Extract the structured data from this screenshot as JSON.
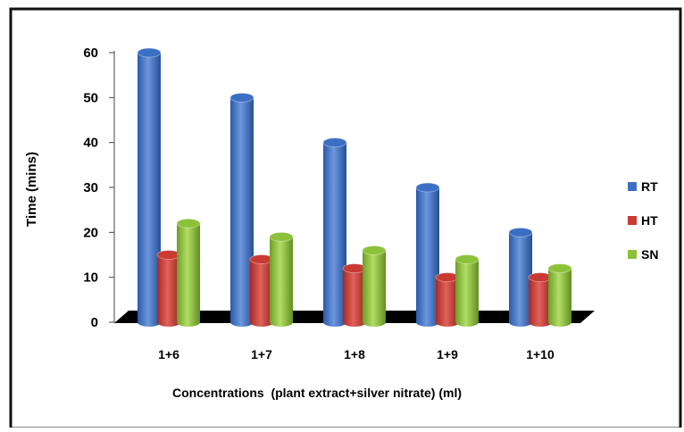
{
  "chart_data": {
    "type": "bar",
    "categories": [
      "1+6",
      "1+7",
      "1+8",
      "1+9",
      "1+10"
    ],
    "series": [
      {
        "name": "RT",
        "values": [
          60,
          50,
          40,
          30,
          20
        ],
        "color": "#3b6fc4"
      },
      {
        "name": "HT",
        "values": [
          15,
          14,
          12,
          10,
          10
        ],
        "color": "#c93a33"
      },
      {
        "name": "SN",
        "values": [
          22,
          19,
          16,
          14,
          12
        ],
        "color": "#8cc23a"
      }
    ],
    "title": "",
    "xlabel": "Concentrations  (plant extract+silver nitrate) (ml)",
    "ylabel": "Time (mins)",
    "ylim": [
      0,
      60
    ],
    "yticks": [
      0,
      10,
      20,
      30,
      40,
      50,
      60
    ],
    "grid": false,
    "legend_position": "right",
    "style": "3d-cylinder"
  }
}
